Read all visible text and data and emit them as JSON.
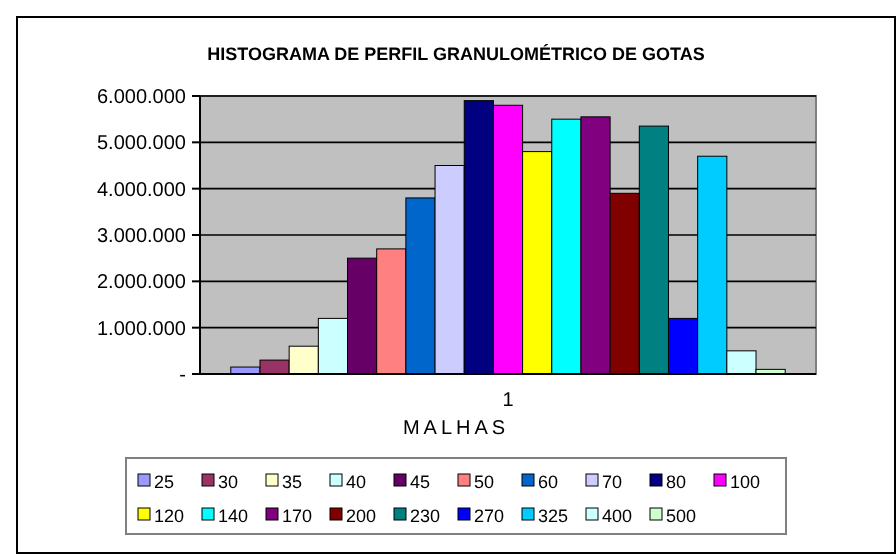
{
  "chart_data": {
    "type": "bar",
    "title": "HISTOGRAMA DE PERFIL GRANULOMÉTRICO DE GOTAS",
    "xlabel": "MALHAS",
    "categories": [
      "1"
    ],
    "series": [
      {
        "name": "25",
        "color": "#9999ff",
        "values": [
          150000
        ]
      },
      {
        "name": "30",
        "color": "#993366",
        "values": [
          300000
        ]
      },
      {
        "name": "35",
        "color": "#ffffcc",
        "values": [
          600000
        ]
      },
      {
        "name": "40",
        "color": "#ccffff",
        "values": [
          1200000
        ]
      },
      {
        "name": "45",
        "color": "#660066",
        "values": [
          2500000
        ]
      },
      {
        "name": "50",
        "color": "#ff8080",
        "values": [
          2700000
        ]
      },
      {
        "name": "60",
        "color": "#0066cc",
        "values": [
          3800000
        ]
      },
      {
        "name": "70",
        "color": "#ccccff",
        "values": [
          4500000
        ]
      },
      {
        "name": "80",
        "color": "#000080",
        "values": [
          5900000
        ]
      },
      {
        "name": "100",
        "color": "#ff00ff",
        "values": [
          5800000
        ]
      },
      {
        "name": "120",
        "color": "#ffff00",
        "values": [
          4800000
        ]
      },
      {
        "name": "140",
        "color": "#00ffff",
        "values": [
          5500000
        ]
      },
      {
        "name": "170",
        "color": "#800080",
        "values": [
          5550000
        ]
      },
      {
        "name": "200",
        "color": "#800000",
        "values": [
          3900000
        ]
      },
      {
        "name": "230",
        "color": "#008080",
        "values": [
          5350000
        ]
      },
      {
        "name": "270",
        "color": "#0000ff",
        "values": [
          1200000
        ]
      },
      {
        "name": "325",
        "color": "#00ccff",
        "values": [
          4700000
        ]
      },
      {
        "name": "400",
        "color": "#ccffff",
        "values": [
          500000
        ]
      },
      {
        "name": "500",
        "color": "#ccffcc",
        "values": [
          100000
        ]
      }
    ],
    "ylim": [
      0,
      6000000
    ],
    "yticks": [
      {
        "value": 0,
        "label": "-"
      },
      {
        "value": 1000000,
        "label": "1.000.000"
      },
      {
        "value": 2000000,
        "label": "2.000.000"
      },
      {
        "value": 3000000,
        "label": "3.000.000"
      },
      {
        "value": 4000000,
        "label": "4.000.000"
      },
      {
        "value": 5000000,
        "label": "5.000.000"
      },
      {
        "value": 6000000,
        "label": "6.000.000"
      }
    ],
    "grid": "y",
    "legend": "bottom"
  }
}
